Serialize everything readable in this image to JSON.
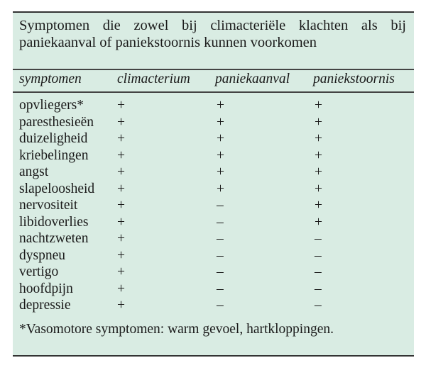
{
  "title": "Symptomen die zowel bij climacteriële klachten als bij paniekaanval of paniekstoornis kunnen voorkomen",
  "columns": [
    "symptomen",
    "climacterium",
    "paniekaanval",
    "paniekstoornis"
  ],
  "rows": [
    [
      "opvliegers*",
      "+",
      "+",
      "+"
    ],
    [
      "paresthesieën",
      "+",
      "+",
      "+"
    ],
    [
      "duizeligheid",
      "+",
      "+",
      "+"
    ],
    [
      "kriebelingen",
      "+",
      "+",
      "+"
    ],
    [
      "angst",
      "+",
      "+",
      "+"
    ],
    [
      "slapeloosheid",
      "+",
      "+",
      "+"
    ],
    [
      "nervositeit",
      "+",
      "–",
      "+"
    ],
    [
      "libidoverlies",
      "+",
      "–",
      "+"
    ],
    [
      "nachtzweten",
      "+",
      "–",
      "–"
    ],
    [
      "dyspneu",
      "+",
      "–",
      "–"
    ],
    [
      "vertigo",
      "+",
      "–",
      "–"
    ],
    [
      "hoofdpijn",
      "+",
      "–",
      "–"
    ],
    [
      "depressie",
      "+",
      "–",
      "–"
    ]
  ],
  "footnote": "*Vasomotore symptomen: warm gevoel, hartkloppingen.",
  "colors": {
    "background": "#d9ece3",
    "rule": "#333333"
  }
}
